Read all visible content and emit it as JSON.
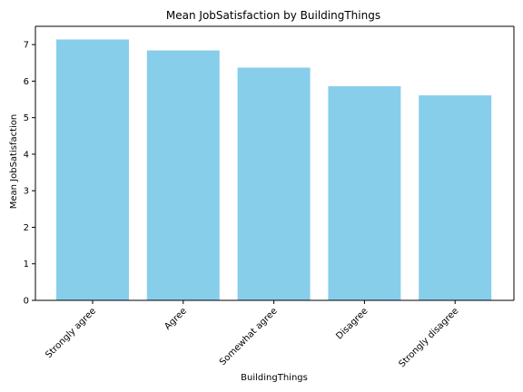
{
  "chart_data": {
    "type": "bar",
    "title": "Mean JobSatisfaction by BuildingThings",
    "xlabel": "BuildingThings",
    "ylabel": "Mean JobSatisfaction",
    "categories": [
      "Strongly agree",
      "Agree",
      "Somewhat agree",
      "Disagree",
      "Strongly disagree"
    ],
    "values": [
      7.14,
      6.84,
      6.37,
      5.86,
      5.61
    ],
    "ylim": [
      0,
      7.5
    ],
    "yticks": [
      0,
      1,
      2,
      3,
      4,
      5,
      6,
      7
    ],
    "bar_color": "#87ceeb",
    "grid": false,
    "legend": "none"
  }
}
